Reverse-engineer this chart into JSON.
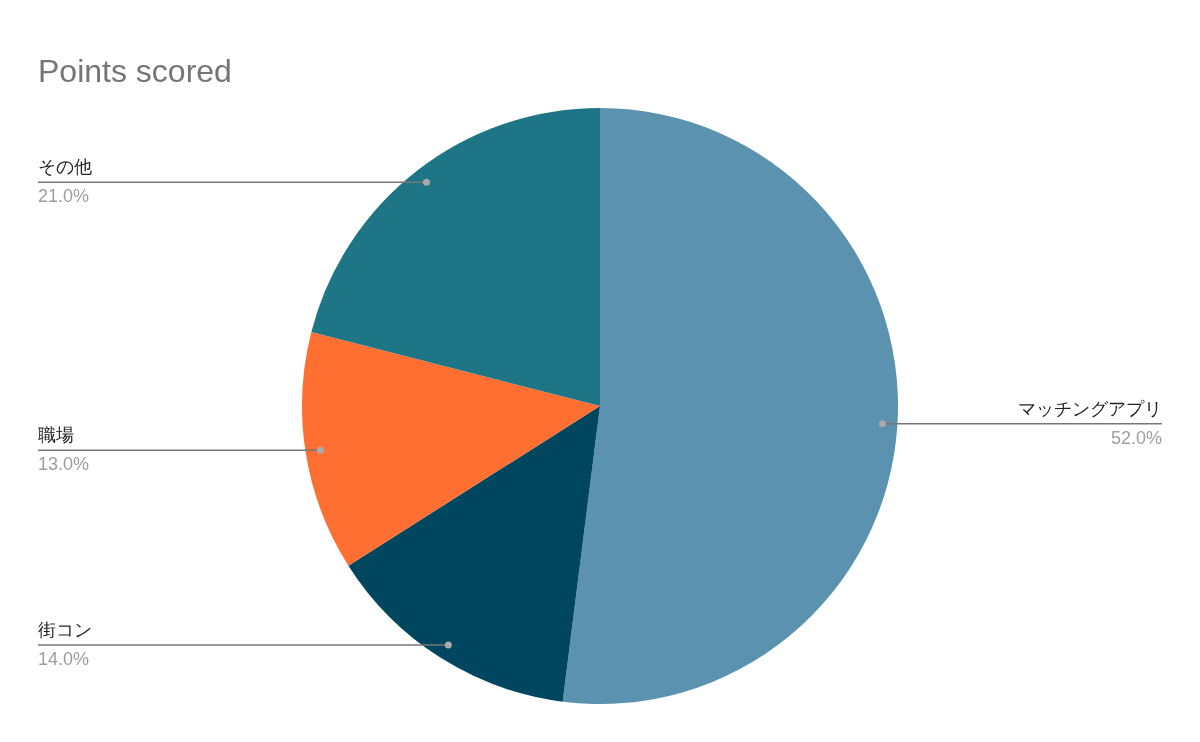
{
  "chart_data": {
    "type": "pie",
    "title": "Points scored",
    "categories": [
      "マッチングアプリ",
      "街コン",
      "職場",
      "その他"
    ],
    "values": [
      52,
      14,
      13,
      21
    ],
    "colors": [
      "#5a92b0",
      "#01465f",
      "#ff6f31",
      "#1e7585"
    ],
    "value_labels": [
      "52.0%",
      "14.0%",
      "13.0%",
      "21.0%"
    ]
  }
}
